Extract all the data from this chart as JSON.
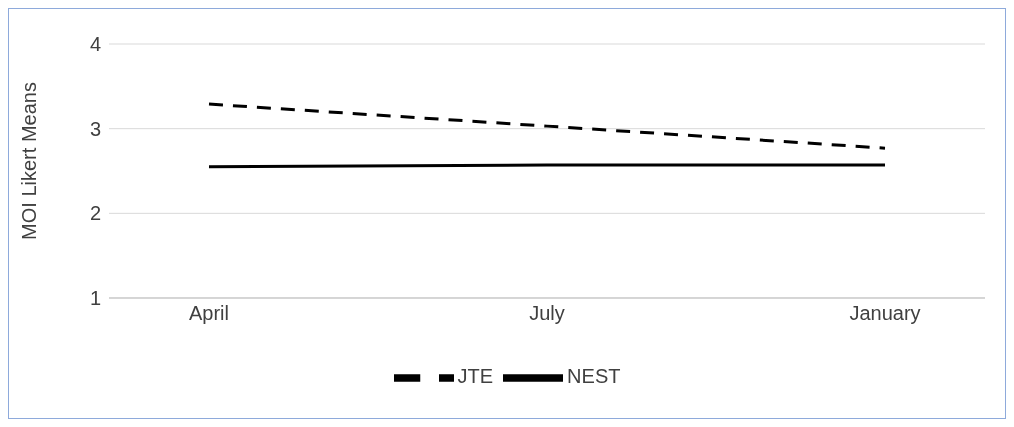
{
  "chart_data": {
    "type": "line",
    "ylabel": "MOI Likert Means",
    "categories": [
      "April",
      "July",
      "January"
    ],
    "series": [
      {
        "name": "NEST",
        "color": "#000000",
        "line_style": "solid",
        "values": [
          2.55,
          2.57,
          2.57
        ]
      },
      {
        "name": "JTE",
        "color": "#000000",
        "line_style": "dashed",
        "values": [
          3.29,
          3.03,
          2.77
        ]
      }
    ],
    "ylim": [
      1,
      4
    ],
    "yticks": [
      1,
      2,
      3,
      4
    ],
    "grid": "y",
    "legend": "bottom",
    "marker": "none"
  }
}
